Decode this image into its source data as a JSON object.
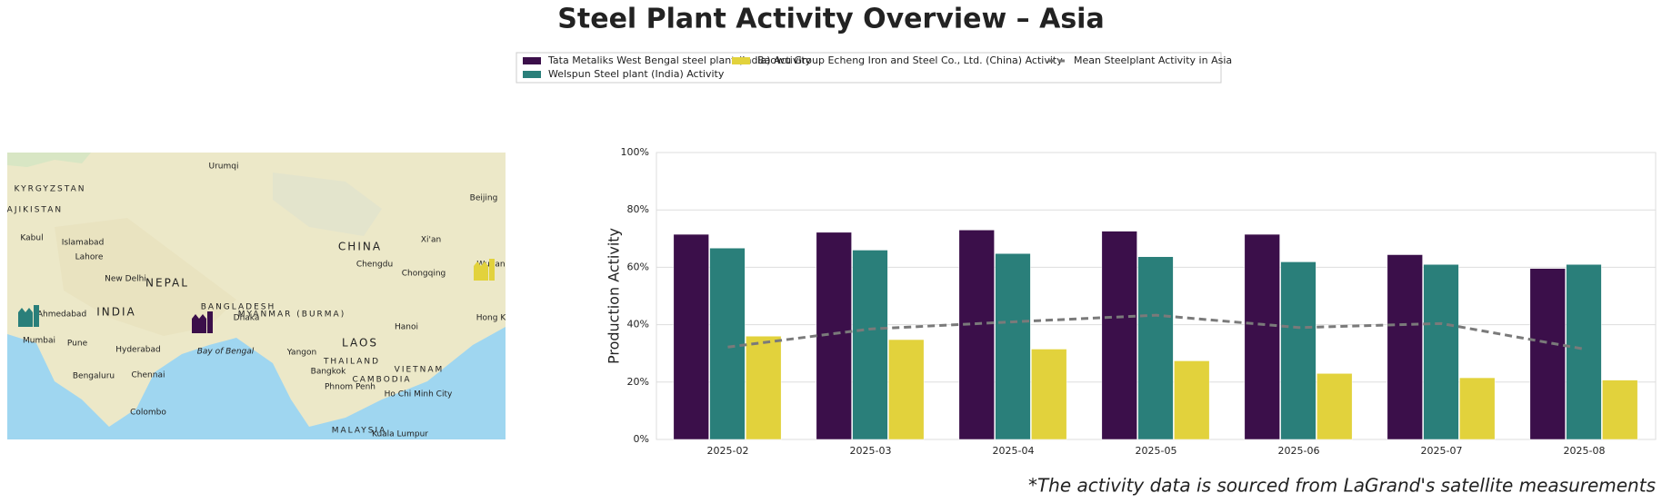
{
  "chart_data": {
    "type": "bar",
    "title": "Steel Plant Activity Overview – Asia",
    "ylabel": "Production Activity",
    "footnote": "*The activity data is sourced from LaGrand's satellite measurements",
    "categories": [
      "2025-02",
      "2025-03",
      "2025-04",
      "2025-05",
      "2025-06",
      "2025-07",
      "2025-08"
    ],
    "series": [
      {
        "name": "Tata Metaliks West Bengal steel plant (India) Activity",
        "color": "#3b0f4a",
        "values": [
          71.5,
          72.2,
          73,
          72.6,
          71.5,
          64.4,
          59.6
        ]
      },
      {
        "name": "Welspun Steel plant (India) Activity",
        "color": "#2a7f7a",
        "values": [
          66.7,
          66,
          64.8,
          63.7,
          61.9,
          61,
          61
        ]
      },
      {
        "name": "Baowu Group Echeng Iron and Steel Co., Ltd. (China) Activity",
        "color": "#e2d23c",
        "values": [
          36,
          34.8,
          31.5,
          27.4,
          23,
          21.5,
          20.7
        ]
      },
      {
        "name": "Mean Steelplant Activity in Asia",
        "color": "#7a7a7a",
        "type": "line",
        "dashed": true,
        "values": [
          32.2,
          38.5,
          41,
          43.3,
          39,
          40.4,
          31.5
        ]
      }
    ],
    "ylim": [
      0,
      100
    ],
    "yticks": [
      {
        "value": 0,
        "label": "0%"
      },
      {
        "value": 20,
        "label": "20%"
      },
      {
        "value": 40,
        "label": "40%"
      },
      {
        "value": 60,
        "label": "60%"
      },
      {
        "value": 80,
        "label": "80%"
      },
      {
        "value": 100,
        "label": "100%"
      }
    ],
    "grid": true,
    "map": {
      "labels": [
        "CHINA",
        "INDIA",
        "Beijing",
        "New Delhi",
        "Mumbai",
        "Ahmedabad",
        "Hyderabad",
        "Chennai",
        "Bengaluru",
        "Dhaka",
        "Chengdu",
        "Chongqing",
        "Hanoi",
        "Bangkok",
        "Yangon",
        "Colombo",
        "Bay of Bengal",
        "Lahore",
        "Islamabad",
        "Kabul",
        "Urumqi",
        "LAOS",
        "THAILAND",
        "VIETNAM",
        "MYANMAR (BURMA)",
        "NEPAL",
        "BANGLADESH",
        "KYRGYZSTAN",
        "TAJIKISTAN",
        "Pune",
        "Xi'an",
        "Hong K",
        "Phnom Penh",
        "Ho Chi Minh City",
        "CAMBODIA",
        "MALAYSIA",
        "Kuala Lumpur",
        "Wuhan"
      ]
    }
  }
}
